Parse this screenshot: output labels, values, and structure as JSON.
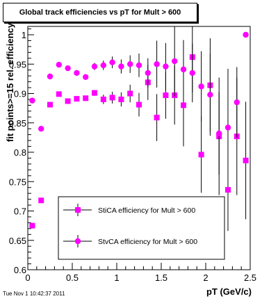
{
  "chart_data": {
    "type": "scatter",
    "title": "Global track efficiencies vs pT for Mult > 600",
    "xlabel": "pT (GeV/c)",
    "ylabel": "fit points>=15 rel. efficiency",
    "xlim": [
      0,
      2.5
    ],
    "ylim": [
      0.6,
      1.02
    ],
    "x_ticks": [
      "0",
      "0.5",
      "1",
      "1.5",
      "2",
      "2.5"
    ],
    "y_ticks": [
      "0.6",
      "0.65",
      "0.7",
      "0.75",
      "0.8",
      "0.85",
      "0.9",
      "0.95",
      "1"
    ],
    "grid": false,
    "legend_placement": "bottom-center",
    "series": [
      {
        "name": "StiCA efficiency  for Mult > 600",
        "marker": "square",
        "color": "#ff00ff",
        "points": [
          {
            "x": 0.05,
            "y": 0.675,
            "err": 0
          },
          {
            "x": 0.15,
            "y": 0.718,
            "err": 0
          },
          {
            "x": 0.25,
            "y": 0.881,
            "err": 0
          },
          {
            "x": 0.35,
            "y": 0.899,
            "err": 0
          },
          {
            "x": 0.45,
            "y": 0.887,
            "err": 0
          },
          {
            "x": 0.55,
            "y": 0.891,
            "err": 0
          },
          {
            "x": 0.65,
            "y": 0.892,
            "err": 0
          },
          {
            "x": 0.75,
            "y": 0.901,
            "err": 0.005
          },
          {
            "x": 0.85,
            "y": 0.89,
            "err": 0.008
          },
          {
            "x": 0.95,
            "y": 0.893,
            "err": 0.01
          },
          {
            "x": 1.05,
            "y": 0.89,
            "err": 0.012
          },
          {
            "x": 1.15,
            "y": 0.9,
            "err": 0.015
          },
          {
            "x": 1.25,
            "y": 0.881,
            "err": 0.02
          },
          {
            "x": 1.35,
            "y": 0.919,
            "err": 0.03
          },
          {
            "x": 1.45,
            "y": 0.859,
            "err": 0.04
          },
          {
            "x": 1.55,
            "y": 0.897,
            "err": 0.04
          },
          {
            "x": 1.65,
            "y": 0.897,
            "err": 0.05
          },
          {
            "x": 1.75,
            "y": 0.88,
            "err": 0.07
          },
          {
            "x": 1.85,
            "y": 0.962,
            "err": 0.06
          },
          {
            "x": 1.95,
            "y": 0.796,
            "err": 0.065
          },
          {
            "x": 2.05,
            "y": 0.914,
            "err": 0.08
          },
          {
            "x": 2.15,
            "y": 0.827,
            "err": 0.1
          },
          {
            "x": 2.25,
            "y": 0.736,
            "err": 0.07
          },
          {
            "x": 2.35,
            "y": 0.827,
            "err": 0.1
          },
          {
            "x": 2.45,
            "y": 0.786,
            "err": 0.1
          }
        ]
      },
      {
        "name": "StvCA efficiency  for Mult > 600",
        "marker": "circle",
        "color": "#ff00ff",
        "points": [
          {
            "x": 0.05,
            "y": 0.888,
            "err": 0
          },
          {
            "x": 0.15,
            "y": 0.84,
            "err": 0
          },
          {
            "x": 0.25,
            "y": 0.929,
            "err": 0
          },
          {
            "x": 0.35,
            "y": 0.949,
            "err": 0
          },
          {
            "x": 0.45,
            "y": 0.943,
            "err": 0
          },
          {
            "x": 0.55,
            "y": 0.935,
            "err": 0
          },
          {
            "x": 0.65,
            "y": 0.928,
            "err": 0.005
          },
          {
            "x": 0.75,
            "y": 0.946,
            "err": 0.006
          },
          {
            "x": 0.85,
            "y": 0.948,
            "err": 0.008
          },
          {
            "x": 0.95,
            "y": 0.953,
            "err": 0.01
          },
          {
            "x": 1.05,
            "y": 0.946,
            "err": 0.012
          },
          {
            "x": 1.15,
            "y": 0.95,
            "err": 0.015
          },
          {
            "x": 1.25,
            "y": 0.948,
            "err": 0.02
          },
          {
            "x": 1.35,
            "y": 0.935,
            "err": 0.025
          },
          {
            "x": 1.45,
            "y": 0.95,
            "err": 0.04
          },
          {
            "x": 1.55,
            "y": 0.946,
            "err": 0.04
          },
          {
            "x": 1.65,
            "y": 0.955,
            "err": 0.06
          },
          {
            "x": 1.75,
            "y": 0.941,
            "err": 0.05
          },
          {
            "x": 1.85,
            "y": 0.935,
            "err": 0.05
          },
          {
            "x": 1.95,
            "y": 0.912,
            "err": 0.06
          },
          {
            "x": 2.05,
            "y": 0.898,
            "err": 0.07
          },
          {
            "x": 2.15,
            "y": 0.832,
            "err": 0.07
          },
          {
            "x": 2.25,
            "y": 0.842,
            "err": 0.1
          },
          {
            "x": 2.35,
            "y": 0.885,
            "err": 0.06
          },
          {
            "x": 2.45,
            "y": 1.0,
            "err": 0
          }
        ]
      }
    ]
  },
  "footer": {
    "timestamp": "Tue Nov  1 10:42:37 2011"
  }
}
